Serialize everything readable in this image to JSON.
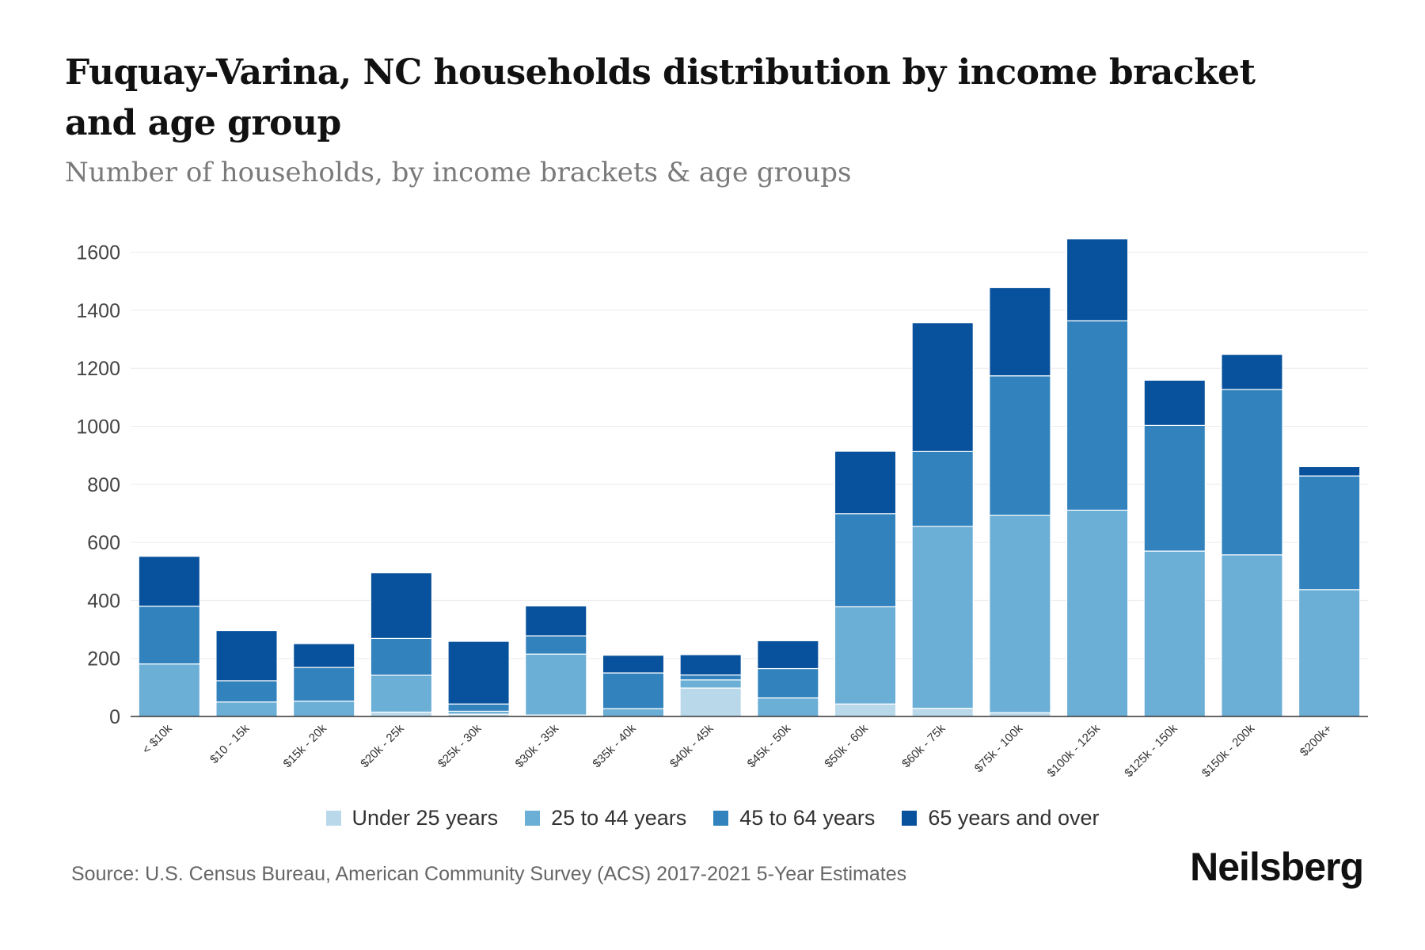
{
  "chart_data": {
    "type": "bar",
    "stacked": true,
    "title": "Fuquay-Varina, NC households distribution by income bracket and age group",
    "subtitle": "Number of households, by income brackets & age groups",
    "xlabel": "",
    "ylabel": "",
    "ylim": [
      0,
      1650
    ],
    "yticks": [
      0,
      200,
      400,
      600,
      800,
      1000,
      1200,
      1400,
      1600
    ],
    "grid": true,
    "legend_position": "bottom",
    "categories": [
      "< $10k",
      "$10 - 15k",
      "$15k - 20k",
      "$20k - 25k",
      "$25k - 30k",
      "$30k - 35k",
      "$35k - 40k",
      "$40k - 45k",
      "$45k - 50k",
      "$50k - 60k",
      "$60k - 75k",
      "$75k - 100k",
      "$100k - 125k",
      "$125k - 150k",
      "$150k - 200k",
      "$200k+"
    ],
    "series": [
      {
        "name": "Under 25 years",
        "color": "#b9d8ea",
        "values": [
          0,
          0,
          0,
          15,
          8,
          5,
          0,
          98,
          0,
          43,
          28,
          13,
          0,
          0,
          0,
          0
        ]
      },
      {
        "name": "25 to 44 years",
        "color": "#6baed6",
        "values": [
          181,
          50,
          53,
          127,
          10,
          210,
          27,
          28,
          64,
          335,
          627,
          680,
          711,
          570,
          557,
          437
        ]
      },
      {
        "name": "45 to 64 years",
        "color": "#3182bd",
        "values": [
          199,
          73,
          116,
          127,
          25,
          63,
          123,
          17,
          101,
          321,
          258,
          481,
          653,
          433,
          570,
          392
        ]
      },
      {
        "name": "65 years and over",
        "color": "#08519c",
        "values": [
          172,
          173,
          82,
          226,
          216,
          103,
          61,
          70,
          96,
          215,
          444,
          304,
          282,
          156,
          121,
          32
        ]
      }
    ]
  },
  "source": "Source: U.S. Census Bureau, American Community Survey (ACS) 2017-2021 5-Year Estimates",
  "brand": "Neilsberg"
}
